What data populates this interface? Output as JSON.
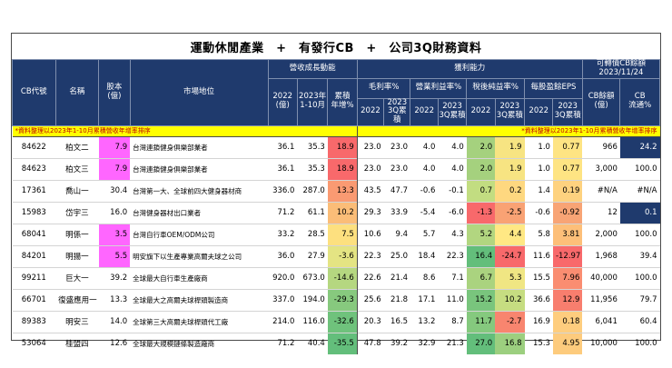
{
  "title": "運動休閒產業　+　有發行CB　+　公司3Q財務資料",
  "headers": {
    "code": "CB代號",
    "name": "名稱",
    "capital": "股本\n(億)",
    "position": "市場地位",
    "revenue_group": "營收成長動能",
    "rev_2022": "2022\n(億)",
    "rev_2023": "2023年\n1-10月",
    "rev_cum": "累積\n年增%",
    "profit_group": "獲利能力",
    "gross": "毛利率%",
    "op": "營業利益率%",
    "net": "稅後純益率%",
    "eps": "每股盈餘EPS",
    "y2022": "2022",
    "y2023": "2023\n3Q累積",
    "cb_group": "可轉債CB餘額\n2023/11/24",
    "cb_balance": "CB餘額\n(億)",
    "cb_ratio": "CB\n流通%"
  },
  "note_left": "*資料整理以2023年1-10月累積營收年增率排序",
  "note_right": "*資料整理以2023年1-10月累積營收年增率排序",
  "rows": [
    {
      "code": "84622",
      "name": "柏文二",
      "capital": "7.9",
      "position": "台灣連鎖健身俱樂部業者",
      "rev2022": "36.1",
      "rev2023": "35.3",
      "cum": "18.9",
      "gm22": "23.0",
      "gm23": "23.0",
      "op22": "4.0",
      "op23": "4.0",
      "net22": "2.0",
      "net23": "1.9",
      "eps22": "1.0",
      "eps23": "0.77",
      "cb": "966",
      "ratio": "24.2"
    },
    {
      "code": "84623",
      "name": "柏文三",
      "capital": "7.9",
      "position": "台灣連鎖健身俱樂部業者",
      "rev2022": "36.1",
      "rev2023": "35.3",
      "cum": "18.9",
      "gm22": "23.0",
      "gm23": "23.0",
      "op22": "4.0",
      "op23": "4.0",
      "net22": "2.0",
      "net23": "1.9",
      "eps22": "1.0",
      "eps23": "0.77",
      "cb": "3,000",
      "ratio": "100.0"
    },
    {
      "code": "17361",
      "name": "喬山一",
      "capital": "30.4",
      "position": "台灣第一大、全球前四大健身器材商",
      "rev2022": "336.0",
      "rev2023": "287.0",
      "cum": "13.3",
      "gm22": "43.5",
      "gm23": "47.7",
      "op22": "-0.6",
      "op23": "-0.1",
      "net22": "0.7",
      "net23": "0.2",
      "eps22": "1.4",
      "eps23": "0.19",
      "cb": "#N/A",
      "ratio": "#N/A"
    },
    {
      "code": "15983",
      "name": "岱宇三",
      "capital": "16.0",
      "position": "台灣健身器材出口業者",
      "rev2022": "71.2",
      "rev2023": "61.1",
      "cum": "10.2",
      "gm22": "29.3",
      "gm23": "33.9",
      "op22": "-5.4",
      "op23": "-6.0",
      "net22": "-1.3",
      "net23": "-2.5",
      "eps22": "-0.6",
      "eps23": "-0.92",
      "cb": "12",
      "ratio": "0.1"
    },
    {
      "code": "68041",
      "name": "明係一",
      "capital": "3.5",
      "position": "台灣自行車OEM/ODM公司",
      "rev2022": "33.2",
      "rev2023": "28.5",
      "cum": "7.5",
      "gm22": "10.6",
      "gm23": "9.4",
      "op22": "5.7",
      "op23": "4.3",
      "net22": "5.2",
      "net23": "4.4",
      "eps22": "5.8",
      "eps23": "3.81",
      "cb": "2,000",
      "ratio": "100.0"
    },
    {
      "code": "84201",
      "name": "明揚一",
      "capital": "5.5",
      "position": "明安旗下以生產專業高爾夫球之公司",
      "rev2022": "36.0",
      "rev2023": "27.9",
      "cum": "-3.6",
      "gm22": "22.3",
      "gm23": "25.0",
      "op22": "18.4",
      "op23": "22.3",
      "net22": "16.4",
      "net23": "-24.7",
      "eps22": "11.6",
      "eps23": "-12.97",
      "cb": "1,968",
      "ratio": "39.4"
    },
    {
      "code": "99211",
      "name": "巨大一",
      "capital": "39.2",
      "position": "全球最大自行車生產廠商",
      "rev2022": "920.0",
      "rev2023": "673.0",
      "cum": "-14.6",
      "gm22": "22.6",
      "gm23": "21.4",
      "op22": "8.6",
      "op23": "7.1",
      "net22": "6.7",
      "net23": "5.3",
      "eps22": "15.5",
      "eps23": "7.96",
      "cb": "40,000",
      "ratio": "100.0"
    },
    {
      "code": "66701",
      "name": "復盛應用一",
      "capital": "13.3",
      "position": "全球最大之高爾夫球桿頭製造商",
      "rev2022": "337.0",
      "rev2023": "194.0",
      "cum": "-29.3",
      "gm22": "25.6",
      "gm23": "21.8",
      "op22": "17.1",
      "op23": "11.0",
      "net22": "15.2",
      "net23": "10.2",
      "eps22": "36.6",
      "eps23": "12.9",
      "cb": "11,956",
      "ratio": "79.7"
    },
    {
      "code": "89383",
      "name": "明安三",
      "capital": "14.0",
      "position": "全球第三大高爾夫球桿頭代工廠",
      "rev2022": "214.0",
      "rev2023": "116.0",
      "cum": "-32.6",
      "gm22": "20.3",
      "gm23": "16.5",
      "op22": "13.2",
      "op23": "8.7",
      "net22": "11.7",
      "net23": "-2.7",
      "eps22": "16.9",
      "eps23": "0.18",
      "cb": "6,041",
      "ratio": "60.4"
    },
    {
      "code": "53064",
      "name": "桂盟四",
      "capital": "12.6",
      "position": "全球最大規模鏈條製造廠商",
      "rev2022": "71.2",
      "rev2023": "40.4",
      "cum": "-35.5",
      "gm22": "47.8",
      "gm23": "39.2",
      "op22": "32.9",
      "op23": "21.3",
      "net22": "27.0",
      "net23": "16.8",
      "eps22": "15.3",
      "eps23": "4.95",
      "cb": "10,000",
      "ratio": "100.0"
    }
  ],
  "colors": {
    "header_bg": "#1f3a6d",
    "capital_highlight": "#ff66ff",
    "cb_highlight": "#1f3a6d",
    "note_bg": "#ffff00",
    "note_text": "#c00000"
  },
  "cell_colors": {
    "cum": [
      "#f8696b",
      "#f8696b",
      "#fa9a72",
      "#fbbd78",
      "#fde07f",
      "#e4e483",
      "#b5d780",
      "#87c97e",
      "#6fc27c",
      "#63be7b"
    ],
    "net22": [
      "#a5d17e",
      "#a5d17e",
      "#c2dd81",
      "#f8696b",
      "#b2d680",
      "#63be7b",
      "#aad37f",
      "#79c57d",
      "#85c97e",
      "#63be7b"
    ],
    "net23": [
      "#f7e482",
      "#f7e482",
      "#fed880",
      "#f9a274",
      "#ffe884",
      "#f8696b",
      "#f0e683",
      "#c6dd81",
      "#f8856f",
      "#9ccf7f"
    ],
    "eps23": [
      "#fee483",
      "#fee483",
      "#fed27f",
      "#f8a475",
      "#fdbf79",
      "#f8696b",
      "#fa8d71",
      "#f87e6e",
      "#fecd7e",
      "#fdcb7d"
    ]
  }
}
